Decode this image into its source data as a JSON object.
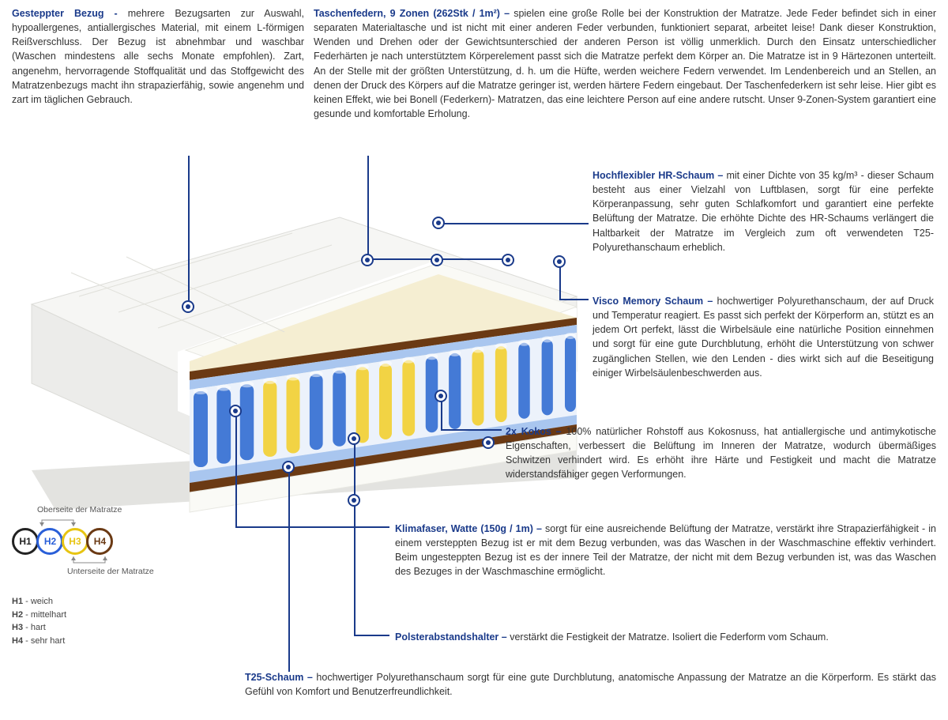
{
  "top": {
    "left": {
      "title": "Gesteppter Bezug - ",
      "body": "mehrere Bezugsarten zur Auswahl, hypoallergenes, antiallergisches Material, mit einem L-förmigen Reißverschluss. Der Bezug ist abnehmbar und waschbar (Waschen mindestens alle sechs Monate empfohlen). Zart, angenehm, hervorragende Stoffqualität und das Stoffgewicht des Matratzenbezugs macht ihn strapazierfähig, sowie angenehm und zart im täglichen Gebrauch."
    },
    "right": {
      "title": "Taschenfedern, 9 Zonen (262Stk / 1m²) – ",
      "body": " spielen eine große Rolle bei der Konstruktion der Matratze. Jede Feder befindet sich in einer separaten Materialtasche und ist nicht mit einer anderen Feder verbunden, funktioniert separat, arbeitet leise! Dank dieser Konstruktion, Wenden und Drehen oder der Gewichtsunterschied der anderen Person ist völlig unmerklich. Durch den Einsatz unterschiedlicher Federhärten je nach unterstütztem Körperelement passt sich die Matratze perfekt dem Körper an. Die Matratze ist in 9 Härtezonen unterteilt. An der Stelle mit der größten Unterstützung, d. h. um die Hüfte, werden weichere Federn verwendet. Im Lendenbereich und an Stellen, an denen der Druck des Körpers auf die Matratze geringer ist, werden härtere Federn eingebaut. Der Taschenfederkern ist sehr leise. Hier gibt es keinen Effekt, wie bei Bonell (Federkern)- Matratzen, das eine leichtere Person auf eine andere rutscht. Unser 9-Zonen-System garantiert eine gesunde und komfortable Erholung."
    }
  },
  "callouts": {
    "hr": {
      "title": "Hochflexibler HR-Schaum – ",
      "body": " mit einer Dichte von 35 kg/m³ - dieser Schaum besteht aus einer Vielzahl von Luftblasen, sorgt für eine perfekte Körperanpassung, sehr guten Schlafkomfort und garantiert eine perfekte Belüftung der Matratze. Die erhöhte Dichte des HR-Schaums verlängert die Haltbarkeit der Matratze im Vergleich zum oft verwendeten T25-Polyurethanschaum erheblich."
    },
    "visco": {
      "title": "Visco Memory Schaum – ",
      "body": "hochwertiger Polyurethanschaum, der auf Druck und Temperatur reagiert. Es passt sich perfekt der Körperform an, stützt es an jedem Ort perfekt, lässt die Wirbelsäule eine natürliche Position einnehmen und sorgt für eine gute Durchblutung, erhöht die Unterstützung von schwer zugänglichen Stellen, wie den Lenden - dies wirkt sich auf die Beseitigung einiger  Wirbelsäulenbeschwerden aus."
    },
    "kokos": {
      "title": "2x Kokos – ",
      "body": " 100% natürlicher Rohstoff aus Kokosnuss, hat antiallergische und antimykotische Eigenschaften, verbessert die Belüftung im Inneren der Matratze, wodurch übermäßiges Schwitzen verhindert wird. Es erhöht ihre Härte und Festigkeit und macht die Matratze widerstandsfähiger gegen Verformungen."
    },
    "klima": {
      "title": "Klimafaser, Watte (150g / 1m) – ",
      "body": " sorgt für eine ausreichende Belüftung der Matratze, verstärkt ihre Strapazierfähigkeit - in einem versteppten Bezug ist er mit dem Bezug verbunden, was das Waschen in der Waschmaschine effektiv verhindert. Beim ungesteppten Bezug ist es der innere Teil der Matratze, der nicht mit dem Bezug verbunden ist, was das Waschen des Bezuges in der Waschmaschine ermöglicht."
    },
    "polster": {
      "title": "Polsterabstandshalter – ",
      "body": "verstärkt die Festigkeit der Matratze. Isoliert die Federform vom Schaum."
    },
    "t25": {
      "title": "T25-Schaum – ",
      "body": "hochwertiger Polyurethanschaum sorgt für eine gute Durchblutung, anatomische Anpassung der Matratze an die Körperform. Es stärkt das Gefühl von Komfort und Benutzerfreundlichkeit."
    }
  },
  "hardness": {
    "top_label": "Oberseite der Matratze",
    "bottom_label": "Unterseite der Matratze",
    "items": [
      {
        "code": "H1",
        "label": "weich",
        "color": "#222222"
      },
      {
        "code": "H2",
        "label": "mittelhart",
        "color": "#2a5fd8"
      },
      {
        "code": "H3",
        "label": "hart",
        "color": "#e7c412"
      },
      {
        "code": "H4",
        "label": "sehr hart",
        "color": "#6b3a14"
      }
    ]
  },
  "palette": {
    "title": "#1a3a8a",
    "spring_blue": "#3b73d4",
    "spring_yellow": "#f2d13a",
    "foam_cream": "#f5eed2",
    "foam_white": "#f7f7f5",
    "coco": "#6b3a14",
    "pad_blue": "#a9c6ef",
    "cover": "#f2f2f0",
    "shadow": "#d9d9d6"
  }
}
